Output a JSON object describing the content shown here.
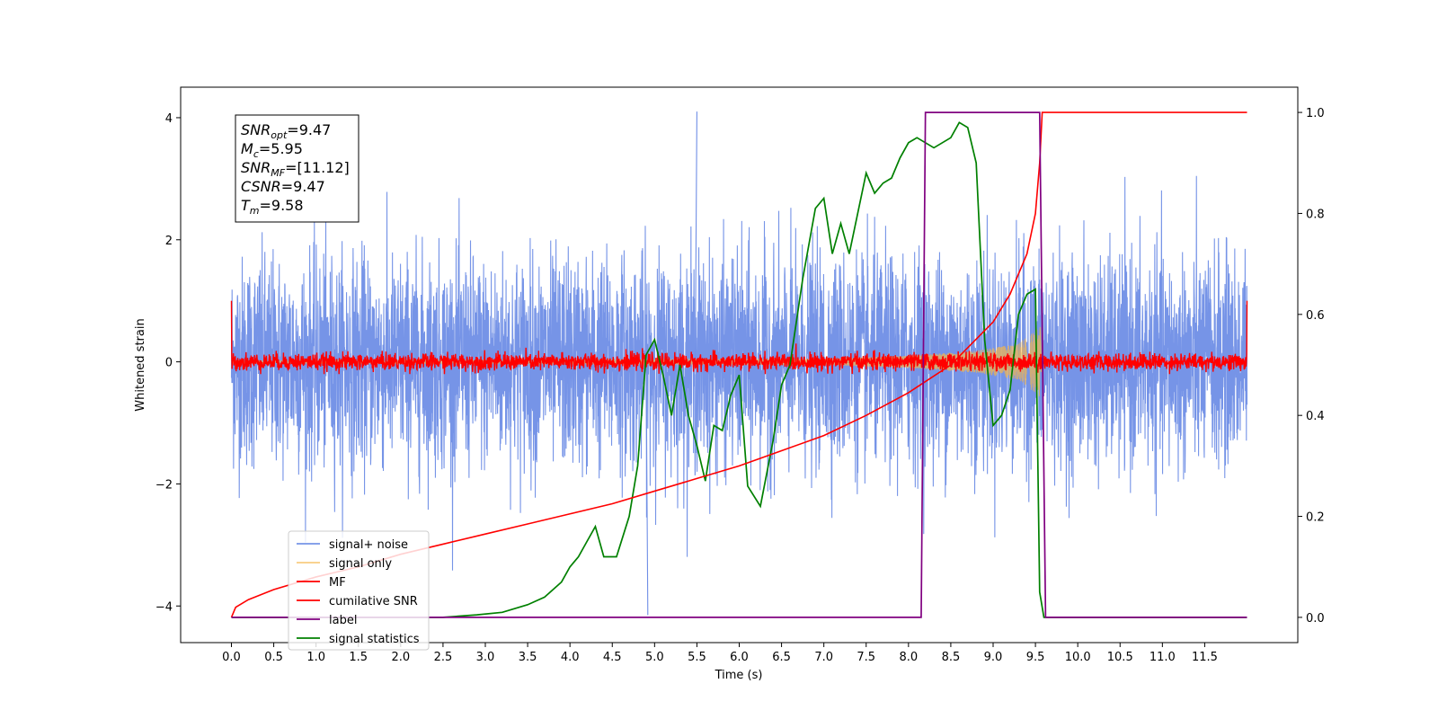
{
  "chart_data": {
    "type": "line",
    "xlabel": "Time (s)",
    "ylabel_left": "Whitened strain",
    "ylabel_right": "",
    "xlim": [
      -0.6,
      12.6
    ],
    "ylim_left": [
      -4.6,
      4.5
    ],
    "ylim_right": [
      -0.05,
      1.05
    ],
    "x_ticks": [
      "0.0",
      "0.5",
      "1.0",
      "1.5",
      "2.0",
      "2.5",
      "3.0",
      "3.5",
      "4.0",
      "4.5",
      "5.0",
      "5.5",
      "6.0",
      "6.5",
      "7.0",
      "7.5",
      "8.0",
      "8.5",
      "9.0",
      "9.5",
      "10.0",
      "10.5",
      "11.0",
      "11.5"
    ],
    "y_ticks_left": [
      "4",
      "2",
      "0",
      "−2",
      "−4"
    ],
    "y_ticks_right": [
      "1.0",
      "0.8",
      "0.6",
      "0.4",
      "0.2",
      "0.0"
    ],
    "grid": false,
    "legend_position": "lower-left",
    "annotation": {
      "lines": [
        {
          "base": "SNR",
          "sub": "opt",
          "value": "=9.47"
        },
        {
          "base": "M",
          "sub": "c",
          "value": "=5.95"
        },
        {
          "base": "SNR",
          "sub": "MF",
          "value": "=[11.12]"
        },
        {
          "base": "CSNR",
          "sub": "",
          "value": "=9.47"
        },
        {
          "base": "T",
          "sub": "m",
          "value": "=9.58"
        }
      ]
    },
    "series": [
      {
        "name": "signal+ noise",
        "axis": "left",
        "color": "#6f8ee6",
        "kind": "noise",
        "x_range": [
          0,
          12
        ],
        "std": 0.85,
        "peak_max": 4.1,
        "peak_min": -4.15
      },
      {
        "name": "signal only",
        "axis": "left",
        "color": "#f5b64a",
        "kind": "chirp",
        "x_range": [
          0,
          9.58
        ],
        "envelope": [
          [
            0,
            0.02
          ],
          [
            7.0,
            0.05
          ],
          [
            8.0,
            0.1
          ],
          [
            8.8,
            0.18
          ],
          [
            9.3,
            0.3
          ],
          [
            9.58,
            0.6
          ]
        ]
      },
      {
        "name": "MF",
        "axis": "left",
        "color": "#ff0000",
        "kind": "mf",
        "x_range": [
          0,
          12
        ],
        "std": 0.07,
        "edge_value": 1.0
      },
      {
        "name": "cumilative SNR",
        "axis": "right",
        "color": "#ff0000",
        "x": [
          0,
          0.05,
          0.2,
          0.5,
          1,
          1.5,
          2,
          2.5,
          3,
          3.5,
          4,
          4.5,
          5,
          5.5,
          6,
          6.5,
          7,
          7.5,
          8,
          8.5,
          9,
          9.2,
          9.4,
          9.5,
          9.55,
          9.58,
          12
        ],
        "y": [
          0,
          0.02,
          0.035,
          0.055,
          0.08,
          0.1,
          0.125,
          0.145,
          0.165,
          0.185,
          0.205,
          0.225,
          0.25,
          0.275,
          0.3,
          0.33,
          0.36,
          0.4,
          0.445,
          0.5,
          0.585,
          0.64,
          0.72,
          0.8,
          0.9,
          1.0,
          1.0
        ]
      },
      {
        "name": "label",
        "axis": "right",
        "color": "#800080",
        "x": [
          0,
          8.15,
          8.2,
          9.55,
          9.62,
          12
        ],
        "y": [
          0,
          0,
          1,
          1,
          0,
          0
        ]
      },
      {
        "name": "signal statistics",
        "axis": "right",
        "color": "#008000",
        "x": [
          0,
          0.5,
          1,
          1.5,
          2,
          2.5,
          2.9,
          3.2,
          3.5,
          3.7,
          3.9,
          4.0,
          4.1,
          4.2,
          4.3,
          4.4,
          4.55,
          4.7,
          4.8,
          4.9,
          5.0,
          5.1,
          5.2,
          5.3,
          5.4,
          5.5,
          5.6,
          5.7,
          5.8,
          5.9,
          6.0,
          6.1,
          6.25,
          6.4,
          6.5,
          6.6,
          6.75,
          6.9,
          7.0,
          7.1,
          7.2,
          7.3,
          7.4,
          7.5,
          7.6,
          7.7,
          7.8,
          7.9,
          8.0,
          8.1,
          8.2,
          8.3,
          8.4,
          8.5,
          8.6,
          8.7,
          8.8,
          8.9,
          9.0,
          9.1,
          9.2,
          9.3,
          9.4,
          9.5,
          9.55,
          9.6,
          9.65,
          12
        ],
        "y": [
          0,
          0,
          0,
          0,
          0,
          0,
          0.005,
          0.01,
          0.025,
          0.04,
          0.07,
          0.1,
          0.12,
          0.15,
          0.18,
          0.12,
          0.12,
          0.2,
          0.3,
          0.52,
          0.55,
          0.48,
          0.4,
          0.5,
          0.4,
          0.34,
          0.27,
          0.38,
          0.37,
          0.44,
          0.48,
          0.26,
          0.22,
          0.35,
          0.46,
          0.5,
          0.67,
          0.81,
          0.83,
          0.72,
          0.78,
          0.72,
          0.8,
          0.88,
          0.84,
          0.86,
          0.87,
          0.91,
          0.94,
          0.95,
          0.94,
          0.93,
          0.94,
          0.95,
          0.98,
          0.97,
          0.9,
          0.55,
          0.38,
          0.4,
          0.45,
          0.6,
          0.64,
          0.65,
          0.05,
          0,
          0,
          0
        ]
      }
    ]
  }
}
